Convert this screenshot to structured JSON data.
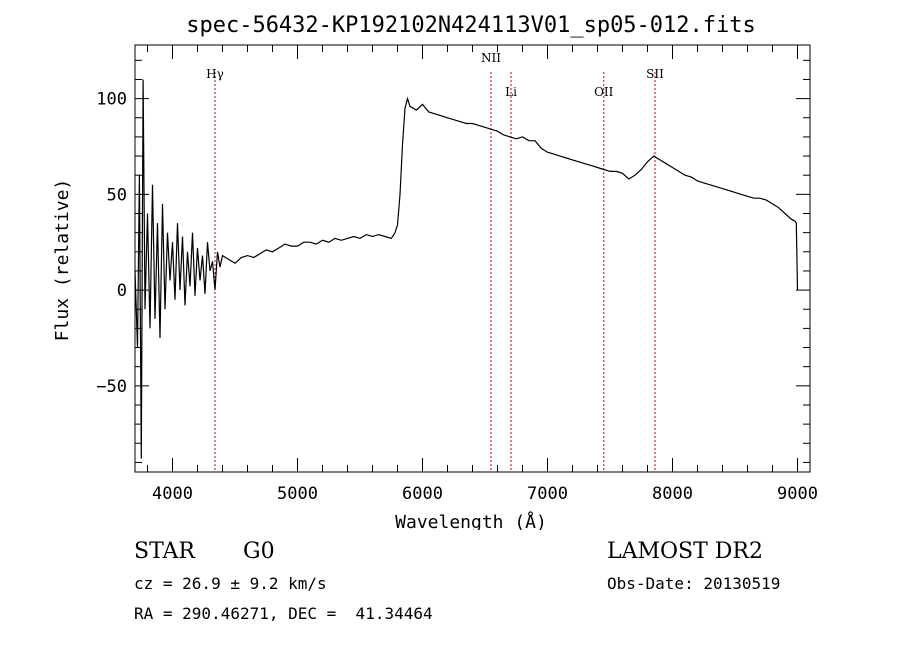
{
  "chart_data": {
    "type": "line",
    "title": "spec-56432-KP192102N424113V01_sp05-012.fits",
    "xlabel": "Wavelength (Å)",
    "ylabel": "Flux (relative)",
    "xlim": [
      3700,
      9100
    ],
    "ylim": [
      -95,
      128
    ],
    "xticks": [
      4000,
      5000,
      6000,
      7000,
      8000,
      9000
    ],
    "yticks": [
      -50,
      0,
      50,
      100
    ],
    "grid": false,
    "line_color": "#000000",
    "marker_color": "#cc0000",
    "series": [
      {
        "x": [
          3700,
          3720,
          3735,
          3750,
          3765,
          3780,
          3800,
          3820,
          3840,
          3860,
          3880,
          3900,
          3920,
          3940,
          3960,
          3980,
          4000,
          4020,
          4040,
          4060,
          4080,
          4100,
          4120,
          4140,
          4160,
          4180,
          4200,
          4220,
          4240,
          4260,
          4280,
          4300,
          4320,
          4340,
          4360,
          4380,
          4400,
          4450,
          4500,
          4550,
          4600,
          4650,
          4700,
          4750,
          4800,
          4850,
          4900,
          4950,
          5000,
          5050,
          5100,
          5150,
          5200,
          5250,
          5300,
          5350,
          5400,
          5450,
          5500,
          5550,
          5600,
          5650,
          5700,
          5750,
          5780,
          5800,
          5820,
          5840,
          5860,
          5880,
          5900,
          5950,
          6000,
          6050,
          6100,
          6150,
          6200,
          6250,
          6300,
          6350,
          6400,
          6450,
          6500,
          6550,
          6600,
          6650,
          6700,
          6750,
          6800,
          6850,
          6900,
          6950,
          7000,
          7050,
          7100,
          7150,
          7200,
          7250,
          7300,
          7350,
          7400,
          7450,
          7500,
          7550,
          7600,
          7650,
          7700,
          7750,
          7800,
          7850,
          7900,
          7950,
          8000,
          8050,
          8100,
          8150,
          8200,
          8250,
          8300,
          8350,
          8400,
          8450,
          8500,
          8550,
          8600,
          8650,
          8700,
          8750,
          8800,
          8850,
          8900,
          8950,
          8980,
          8990,
          9000
        ],
        "y": [
          10,
          -30,
          60,
          -88,
          110,
          -10,
          40,
          -20,
          55,
          -15,
          35,
          -25,
          45,
          -10,
          30,
          5,
          25,
          -5,
          35,
          0,
          28,
          -8,
          20,
          2,
          30,
          -3,
          22,
          5,
          18,
          -2,
          25,
          10,
          15,
          0,
          20,
          12,
          18,
          16,
          14,
          17,
          18,
          17,
          19,
          21,
          20,
          22,
          24,
          23,
          23,
          25,
          25,
          24,
          26,
          25,
          27,
          26,
          27,
          28,
          27,
          29,
          28,
          29,
          28,
          27,
          30,
          34,
          50,
          76,
          95,
          100,
          96,
          94,
          97,
          93,
          92,
          91,
          90,
          89,
          88,
          87,
          87,
          86,
          85,
          84,
          83,
          81,
          80,
          79,
          80,
          78,
          78,
          74,
          72,
          71,
          70,
          69,
          68,
          67,
          66,
          65,
          64,
          63,
          62,
          62,
          61,
          58,
          60,
          63,
          67,
          70,
          68,
          66,
          64,
          62,
          60,
          59,
          57,
          56,
          55,
          54,
          53,
          52,
          51,
          50,
          49,
          48,
          48,
          47,
          45,
          43,
          40,
          37,
          36,
          35,
          0
        ]
      }
    ],
    "annotations": [
      {
        "text": "Hγ",
        "x": 4340
      },
      {
        "text": "NII",
        "x": 6548
      },
      {
        "text": "Li",
        "x": 6708
      },
      {
        "text": "OII",
        "x": 7450
      },
      {
        "text": "SII",
        "x": 7860
      }
    ]
  },
  "info": {
    "object_class": "STAR",
    "subclass": "G0",
    "survey": "LAMOST DR2",
    "cz": "cz = 26.9 ± 9.2 km/s",
    "obs_date": "Obs-Date: 20130519",
    "coords": "RA = 290.46271, DEC =  41.34464"
  }
}
